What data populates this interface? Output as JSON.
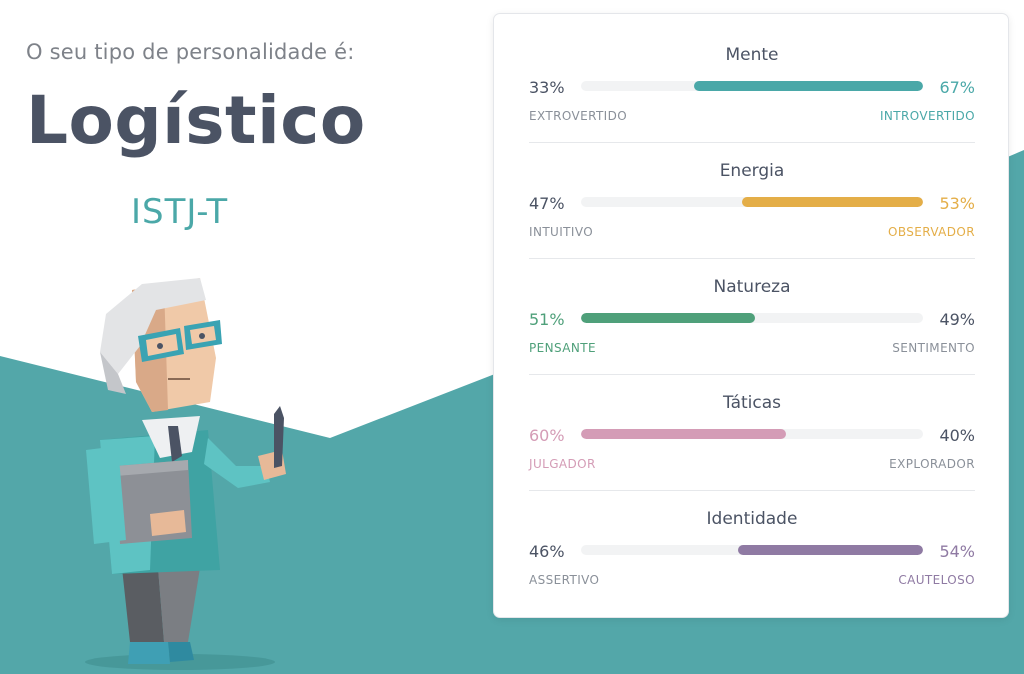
{
  "header": {
    "intro": "O seu tipo de personalidade é:",
    "type_name": "Logístico",
    "type_code": "ISTJ-T"
  },
  "colors": {
    "teal_bg": "#53a7a9",
    "text_dark": "#4b5364",
    "muted": "#8a9099"
  },
  "traits": [
    {
      "title": "Mente",
      "left_pct": "33%",
      "right_pct": "67%",
      "left_label": "EXTROVERTIDO",
      "right_label": "INTROVERTIDO",
      "dominant": "right",
      "value": 0.67,
      "color": "#4aa8a8"
    },
    {
      "title": "Energia",
      "left_pct": "47%",
      "right_pct": "53%",
      "left_label": "INTUITIVO",
      "right_label": "OBSERVADOR",
      "dominant": "right",
      "value": 0.53,
      "color": "#e4ae48"
    },
    {
      "title": "Natureza",
      "left_pct": "51%",
      "right_pct": "49%",
      "left_label": "PENSANTE",
      "right_label": "SENTIMENTO",
      "dominant": "left",
      "value": 0.51,
      "color": "#4fa07a"
    },
    {
      "title": "Táticas",
      "left_pct": "60%",
      "right_pct": "40%",
      "left_label": "JULGADOR",
      "right_label": "EXPLORADOR",
      "dominant": "left",
      "value": 0.6,
      "color": "#d49cb6"
    },
    {
      "title": "Identidade",
      "left_pct": "46%",
      "right_pct": "54%",
      "left_label": "ASSERTIVO",
      "right_label": "CAUTELOSO",
      "dominant": "right",
      "value": 0.54,
      "color": "#8f7aa3"
    }
  ]
}
